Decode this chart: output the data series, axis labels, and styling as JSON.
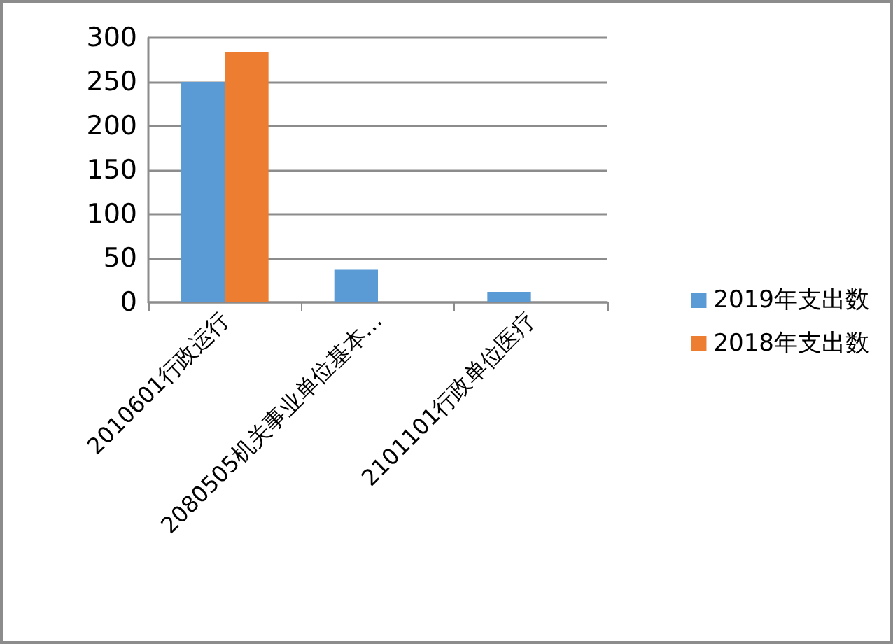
{
  "chart_data": {
    "type": "bar",
    "categories": [
      "2010601行政运行",
      "2080505机关事业单位基本…",
      "2101101行政单位医疗"
    ],
    "series": [
      {
        "name": "2019年支出数",
        "color": "#5b9bd5",
        "values": [
          250,
          37,
          12
        ]
      },
      {
        "name": "2018年支出数",
        "color": "#ed7d31",
        "values": [
          284,
          0,
          0
        ]
      }
    ],
    "ylim": [
      0,
      300
    ],
    "yticks": [
      0,
      50,
      100,
      150,
      200,
      250,
      300
    ],
    "grid": "y",
    "legend": "right"
  }
}
